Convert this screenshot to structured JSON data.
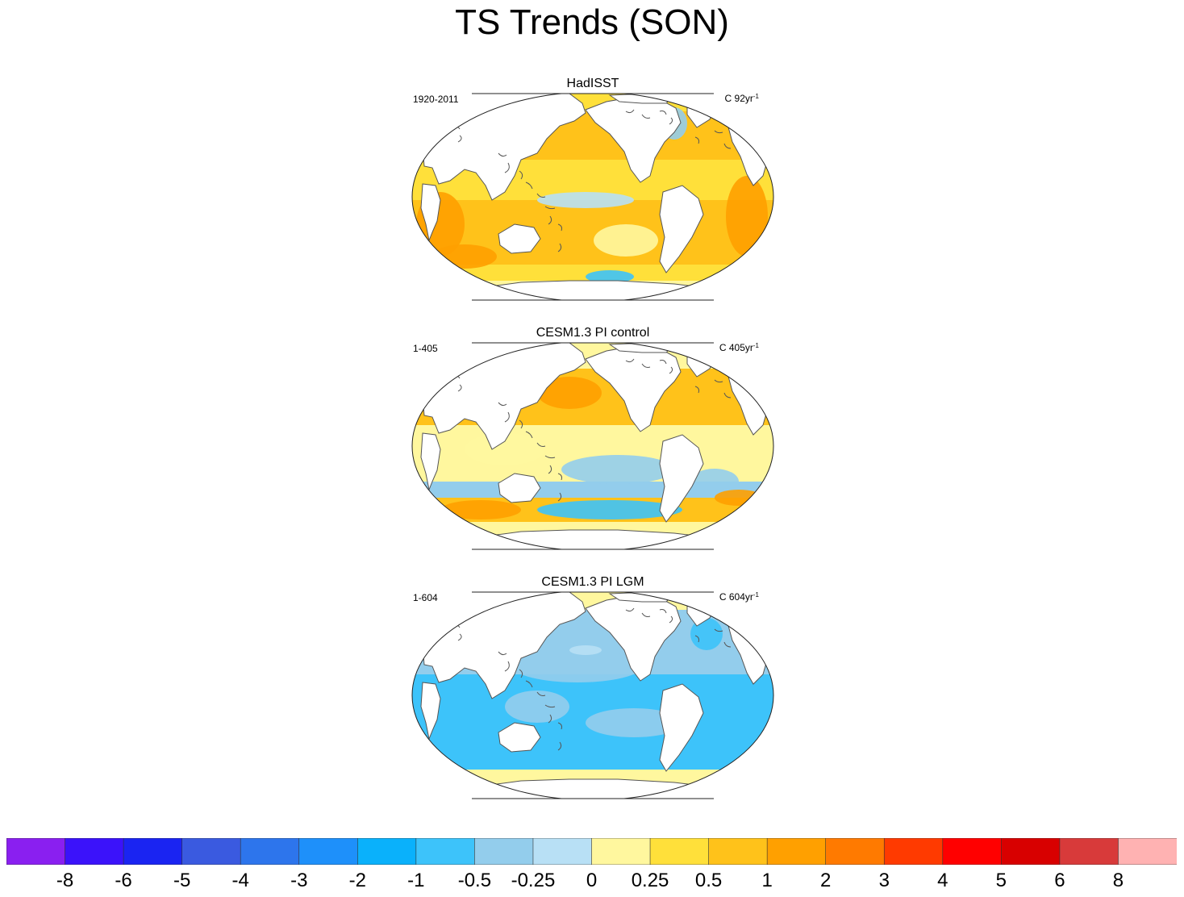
{
  "title": "TS Trends (SON)",
  "panels": [
    {
      "title": "HadISST",
      "period": "1920-2011",
      "label": "C 92yr",
      "label_exponent": "-1",
      "pattern": "warm"
    },
    {
      "title": "CESM1.3 PI control",
      "period": "1-405",
      "label": "C 405yr",
      "label_exponent": "-1",
      "pattern": "mixed"
    },
    {
      "title": "CESM1.3 PI LGM",
      "period": "1-604",
      "label": "C 604yr",
      "label_exponent": "-1",
      "pattern": "cool"
    }
  ],
  "colorbar": {
    "colors": [
      "#8a1ff0",
      "#3b12fa",
      "#1a24f2",
      "#3a5ae0",
      "#2d75ec",
      "#1e90fa",
      "#0ab1fb",
      "#3dc3fa",
      "#93cdec",
      "#b8e0f5",
      "#fff79e",
      "#ffe03a",
      "#ffc21a",
      "#ffa000",
      "#ff7a00",
      "#ff3a00",
      "#ff0000",
      "#d80000",
      "#d83a3a",
      "#ffb2b2"
    ],
    "levels": [
      "-8",
      "-6",
      "-5",
      "-4",
      "-3",
      "-2",
      "-1",
      "-0.5",
      "-0.25",
      "0",
      "0.25",
      "0.5",
      "1",
      "2",
      "3",
      "4",
      "5",
      "6",
      "8"
    ]
  },
  "land_color": "#ffffff",
  "coast_color": "#555555"
}
